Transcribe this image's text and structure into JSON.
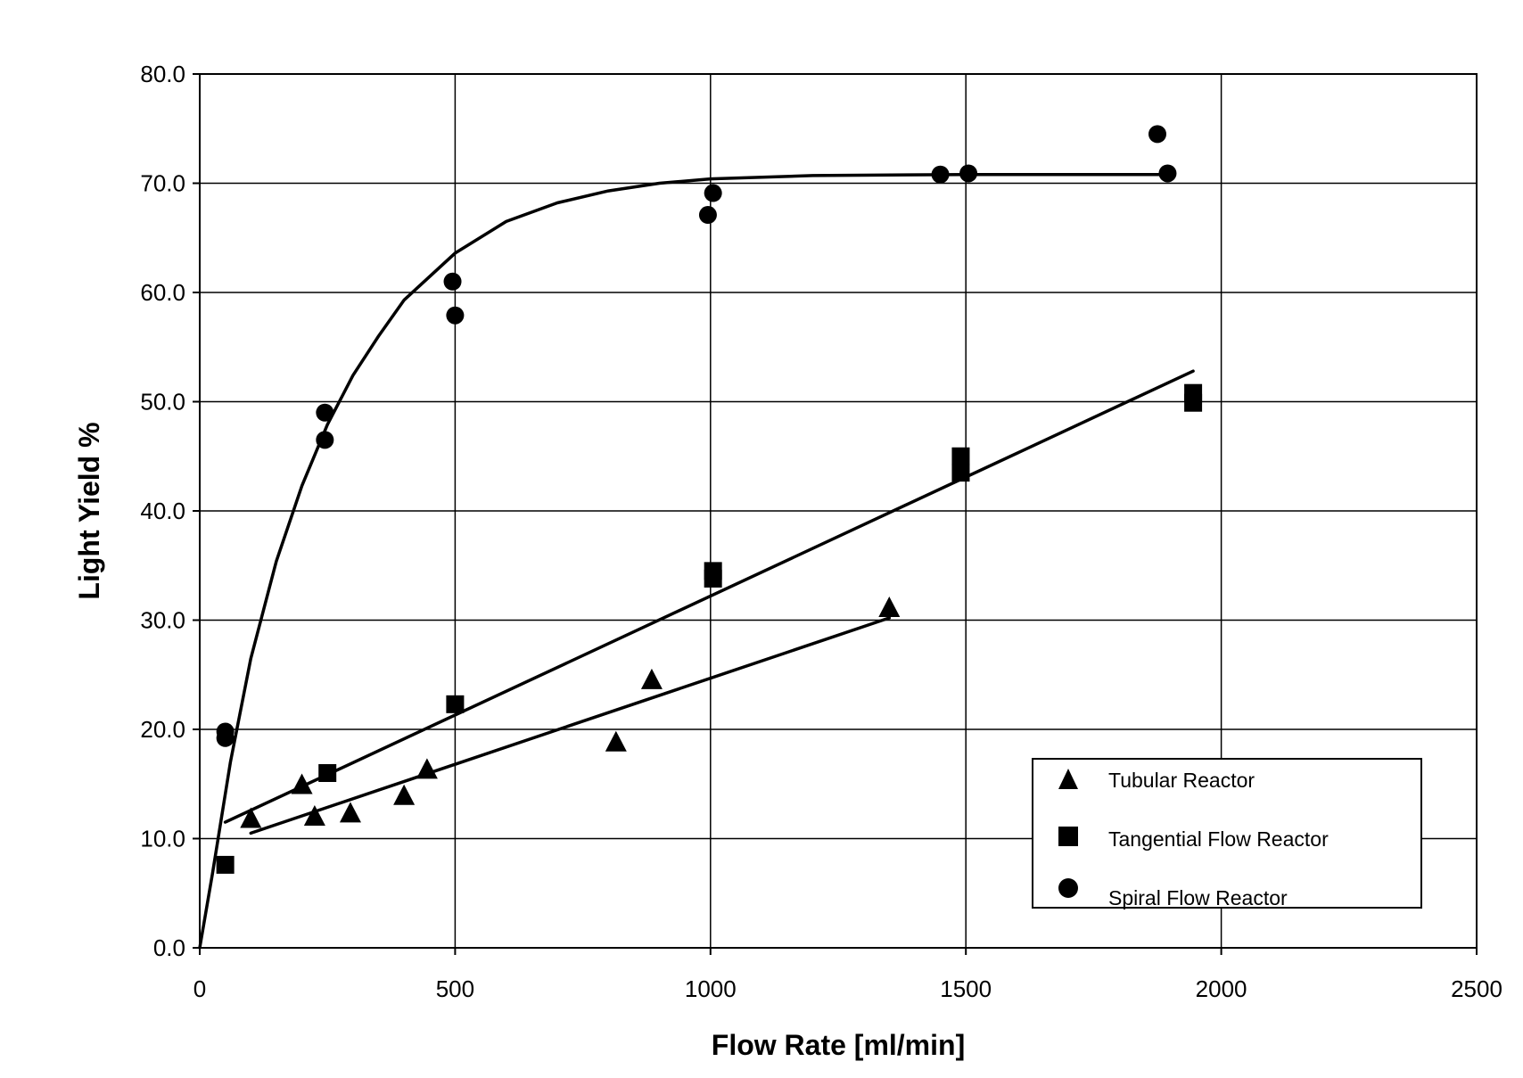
{
  "chart_data": {
    "type": "scatter",
    "title": "",
    "xlabel": "Flow Rate [ml/min]",
    "ylabel": "Light Yield %",
    "xlim": [
      0,
      2500
    ],
    "ylim": [
      0,
      80
    ],
    "x_ticks": [
      "0",
      "500",
      "1000",
      "1500",
      "2000",
      "2500"
    ],
    "y_ticks": [
      "0.0",
      "10.0",
      "20.0",
      "30.0",
      "40.0",
      "50.0",
      "60.0",
      "70.0",
      "80.0"
    ],
    "grid": true,
    "legend_position": "bottom-right",
    "series": [
      {
        "name": "Tubular Reactor",
        "marker": "triangle",
        "points": [
          [
            100,
            11.8
          ],
          [
            200,
            14.9
          ],
          [
            225,
            12.0
          ],
          [
            295,
            12.3
          ],
          [
            400,
            13.9
          ],
          [
            445,
            16.3
          ],
          [
            815,
            18.8
          ],
          [
            885,
            24.5
          ],
          [
            1350,
            31.1
          ]
        ],
        "trendline": [
          [
            100,
            10.5
          ],
          [
            1350,
            30.2
          ]
        ]
      },
      {
        "name": "Tangential Flow Reactor",
        "marker": "square",
        "points": [
          [
            50,
            7.6
          ],
          [
            250,
            16.0
          ],
          [
            500,
            22.3
          ],
          [
            1005,
            34.5
          ],
          [
            1005,
            33.8
          ],
          [
            1490,
            45.0
          ],
          [
            1490,
            43.5
          ],
          [
            1945,
            50.8
          ],
          [
            1945,
            49.9
          ]
        ],
        "trendline": [
          [
            50,
            11.5
          ],
          [
            1945,
            52.8
          ]
        ]
      },
      {
        "name": "Spiral Flow Reactor",
        "marker": "circle",
        "points": [
          [
            50,
            19.8
          ],
          [
            50,
            19.2
          ],
          [
            245,
            49.0
          ],
          [
            245,
            46.5
          ],
          [
            495,
            61.0
          ],
          [
            500,
            57.9
          ],
          [
            995,
            67.1
          ],
          [
            1005,
            69.1
          ],
          [
            1450,
            70.8
          ],
          [
            1505,
            70.9
          ],
          [
            1875,
            74.5
          ],
          [
            1895,
            70.9
          ]
        ],
        "trendline": "0,0 25,6.8 60,17 100,26.5 150,35.4 200,42.3 250,47.9 300,52.4 350,56.0 400,59.3 500,63.6 600,66.5 700,68.2 800,69.3 900,70.0 1000,70.4 1200,70.7 1500,70.8 1900,70.8"
      }
    ]
  }
}
